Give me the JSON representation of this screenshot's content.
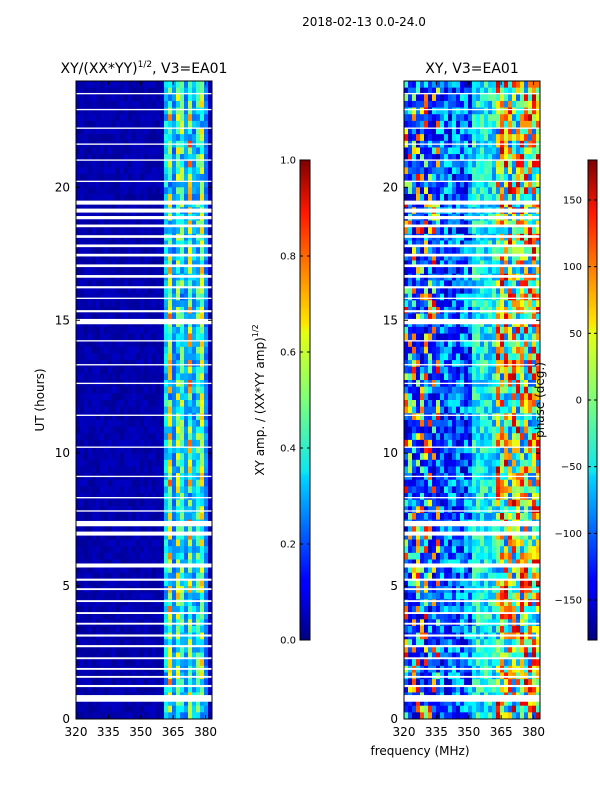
{
  "figure_title": "2018-02-13 0.0-24.0",
  "shared_xlabel": "frequency (MHz)",
  "chart_data": [
    {
      "type": "heatmap",
      "title": "XY/(XX*YY)",
      "title_superscript": "1/2",
      "title_suffix": ", V3=EA01",
      "xlabel": "",
      "ylabel": "UT (hours)",
      "xlim": [
        320,
        383
      ],
      "ylim": [
        0,
        24
      ],
      "xticks": [
        320,
        335,
        350,
        365,
        380
      ],
      "yticks": [
        0,
        5,
        10,
        15,
        20
      ],
      "colorbar": {
        "label": "XY amp. / (XX*YY amp)",
        "label_superscript": "1/2",
        "range": [
          0.0,
          1.0
        ],
        "ticks": [
          "0.0",
          "0.2",
          "0.4",
          "0.6",
          "0.8",
          "1.0"
        ],
        "colormap": "jet"
      },
      "summary": "Mostly near 0.0 (dark blue) across 320-361 MHz; bright bands (0.4-0.8) between about 362 and 382 MHz; horizontal white gaps of flagged data."
    },
    {
      "type": "heatmap",
      "title": "XY, V3=EA01",
      "xlabel": "frequency (MHz)",
      "ylabel": "",
      "xlim": [
        320,
        383
      ],
      "ylim": [
        0,
        24
      ],
      "xticks": [
        320,
        335,
        350,
        365,
        380
      ],
      "yticks": [
        0,
        5,
        10,
        15,
        20
      ],
      "colorbar": {
        "label": "phase (deg.)",
        "range": [
          -180,
          180
        ],
        "ticks": [
          "-150",
          "-100",
          "-50",
          "0",
          "50",
          "100",
          "150"
        ],
        "colormap": "jet"
      },
      "summary": "Phase varies from about -180 (blue) near 320-335 MHz to +180 (red) in several bands; yellow/green structures above 360 MHz; horizontal white gaps of flagged data."
    }
  ],
  "flagged_gaps_hours": [
    [
      0.65,
      0.9
    ],
    [
      1.2,
      1.28
    ],
    [
      1.55,
      1.62
    ],
    [
      1.85,
      1.92
    ],
    [
      2.25,
      2.32
    ],
    [
      2.7,
      2.78
    ],
    [
      3.1,
      3.18
    ],
    [
      3.55,
      3.62
    ],
    [
      3.95,
      4.02
    ],
    [
      4.4,
      4.47
    ],
    [
      4.85,
      4.92
    ],
    [
      5.2,
      5.28
    ],
    [
      5.7,
      5.85
    ],
    [
      6.9,
      7.05
    ],
    [
      7.25,
      7.45
    ],
    [
      7.8,
      7.85
    ],
    [
      8.3,
      8.35
    ],
    [
      9.1,
      9.15
    ],
    [
      10.2,
      10.25
    ],
    [
      11.4,
      11.45
    ],
    [
      12.6,
      12.65
    ],
    [
      13.3,
      13.35
    ],
    [
      14.2,
      14.25
    ],
    [
      14.85,
      15.05
    ],
    [
      15.3,
      15.38
    ],
    [
      15.8,
      15.85
    ],
    [
      16.2,
      16.28
    ],
    [
      16.6,
      16.7
    ],
    [
      17.0,
      17.1
    ],
    [
      17.4,
      17.5
    ],
    [
      17.75,
      17.85
    ],
    [
      18.1,
      18.2
    ],
    [
      18.5,
      18.6
    ],
    [
      18.8,
      18.92
    ],
    [
      19.05,
      19.2
    ],
    [
      19.35,
      19.5
    ],
    [
      20.2,
      20.25
    ],
    [
      21.0,
      21.05
    ],
    [
      21.6,
      21.65
    ],
    [
      22.2,
      22.25
    ],
    [
      22.9,
      22.95
    ],
    [
      23.5,
      23.55
    ]
  ]
}
